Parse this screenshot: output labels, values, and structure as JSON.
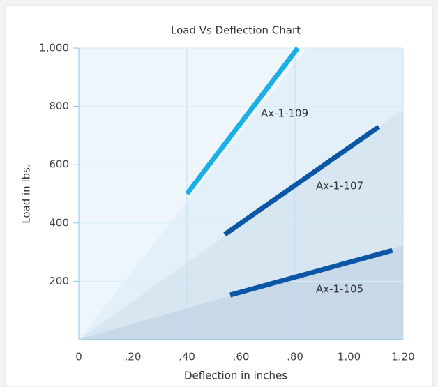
{
  "chart_data": {
    "type": "line",
    "title": "Load Vs Deflection Chart",
    "xlabel": "Deflection in inches",
    "ylabel": "Load in lbs.",
    "xlim": [
      0,
      1.2
    ],
    "ylim": [
      0,
      1000
    ],
    "xticks": [
      0,
      {
        "value": 0.2,
        "label": ".20"
      },
      {
        "value": 0.4,
        "label": ".40"
      },
      {
        "value": 0.6,
        "label": ".60"
      },
      {
        "value": 0.8,
        "label": ".80"
      },
      {
        "value": 1.0,
        "label": "1.00"
      },
      {
        "value": 1.2,
        "label": "1.20"
      }
    ],
    "yticks": [
      200,
      400,
      600,
      800,
      {
        "value": 1000,
        "label": "1,000"
      }
    ],
    "grid": true,
    "series": [
      {
        "name": "Ax-1-109",
        "color": "#1ab0e6",
        "x": [
          0.4,
          0.81
        ],
        "values": [
          500,
          1000
        ]
      },
      {
        "name": "Ax-1-107",
        "color": "#0b57a6",
        "x": [
          0.54,
          1.11
        ],
        "values": [
          361,
          730
        ]
      },
      {
        "name": "Ax-1-105",
        "color": "#0b57a6",
        "x": [
          0.56,
          1.16
        ],
        "values": [
          153,
          306
        ]
      }
    ]
  }
}
